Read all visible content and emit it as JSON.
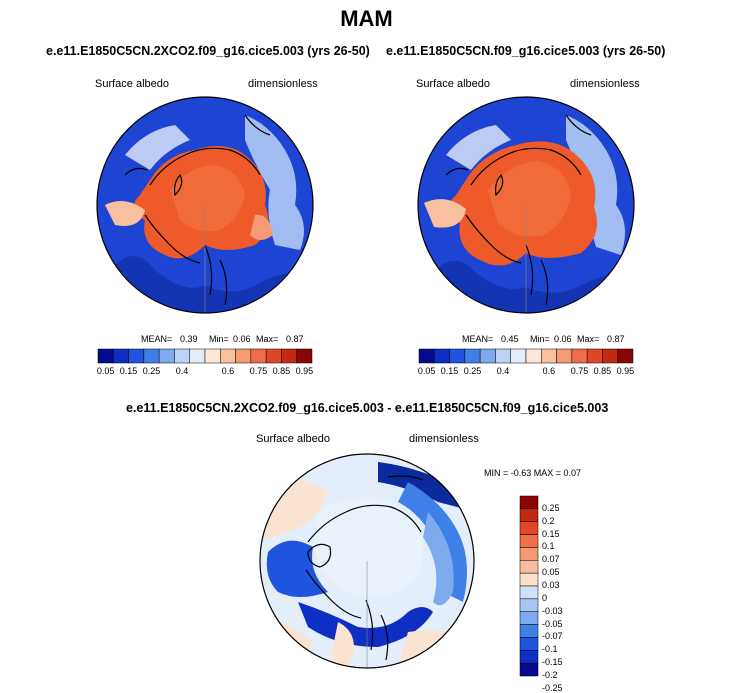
{
  "season_title": "MAM",
  "colors": {
    "abs_scale": [
      "#060a8f",
      "#0f2ec4",
      "#1f55de",
      "#3f7fe8",
      "#7eaaf0",
      "#b9d2f6",
      "#e4eefb",
      "#fde8d8",
      "#f9c0a0",
      "#f49a74",
      "#ef6e4a",
      "#e04725",
      "#c22a14",
      "#8a0606"
    ],
    "diff_scale": [
      "#060a8f",
      "#0f2ec4",
      "#1f55de",
      "#3f7fe8",
      "#7eaaf0",
      "#a8c6f2",
      "#cfe0f7",
      "#fbe0cb",
      "#f7bf9e",
      "#f39873",
      "#ef6e4a",
      "#e04725",
      "#c22a14",
      "#8a0606"
    ],
    "ocean_blue": "#1e44d4",
    "deep_blue": "#0b2a9c",
    "ice_orange": "#ee5a2a",
    "light_blue": "#d6e6f8",
    "peach": "#fbe3d2"
  },
  "panel_left": {
    "case": "e.e11.E1850C5CN.2XCO2.f09_g16.cice5.003 (yrs 26-50)",
    "variable": "Surface albedo",
    "units": "dimensionless",
    "stats": {
      "mean_label": "MEAN=",
      "mean": "0.39",
      "min_label": "Min=",
      "min": "0.06",
      "max_label": "Max=",
      "max": "0.87"
    }
  },
  "panel_right": {
    "case": "e.e11.E1850C5CN.f09_g16.cice5.003 (yrs 26-50)",
    "variable": "Surface albedo",
    "units": "dimensionless",
    "stats": {
      "mean_label": "MEAN=",
      "mean": "0.45",
      "min_label": "Min=",
      "min": "0.06",
      "max_label": "Max=",
      "max": "0.87"
    }
  },
  "abs_colorbar_labels": [
    "0.05",
    "0.15",
    "0.25",
    "0.4",
    "0.6",
    "0.75",
    "0.85",
    "0.95"
  ],
  "panel_diff": {
    "title": "e.e11.E1850C5CN.2XCO2.f09_g16.cice5.003 - e.e11.E1850C5CN.f09_g16.cice5.003",
    "variable": "Surface albedo",
    "units": "dimensionless",
    "range_text": "MIN =  -0.63 MAX =   0.07",
    "colorbar_labels": [
      "0.25",
      "0.2",
      "0.15",
      "0.1",
      "0.07",
      "0.05",
      "0.03",
      "0",
      "-0.03",
      "-0.05",
      "-0.07",
      "-0.1",
      "-0.15",
      "-0.2",
      "-0.25"
    ]
  }
}
